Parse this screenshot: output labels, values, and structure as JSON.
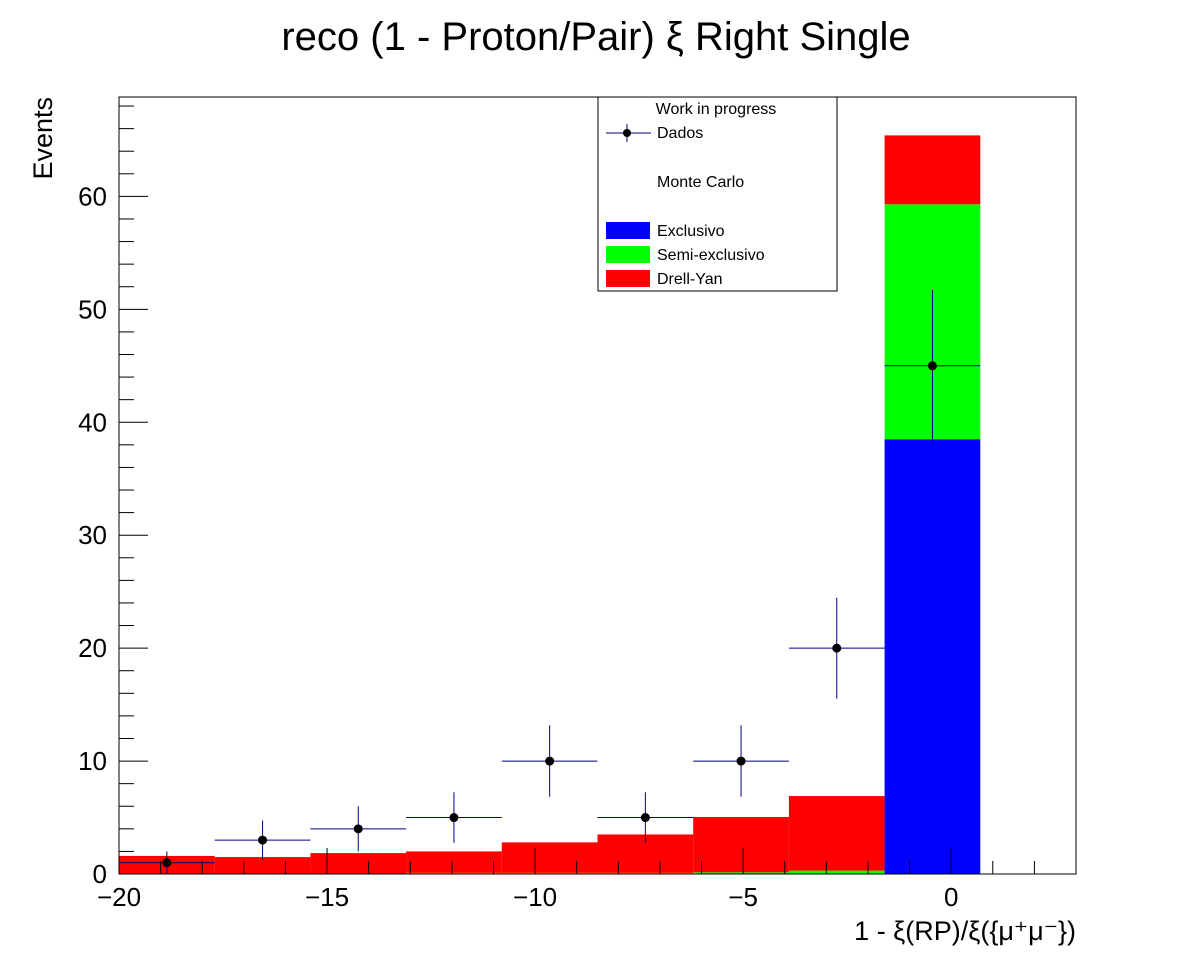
{
  "chart_data": {
    "type": "bar",
    "stacked": true,
    "title": "reco (1 - Proton/Pair)  ξ Right Single",
    "xlabel": "1 - ξ(RP)/ξ({μ⁺μ⁻})",
    "ylabel": "Events",
    "xlim": [
      -20,
      3
    ],
    "ylim": [
      0,
      68.8
    ],
    "grid": false,
    "legend_position": "top-center",
    "x_ticks": [
      -20,
      -15,
      -10,
      -5,
      0
    ],
    "x_tick_labels": [
      "−20",
      "−15",
      "−10",
      "−5",
      "0"
    ],
    "y_ticks": [
      0,
      10,
      20,
      30,
      40,
      50,
      60
    ],
    "y_tick_labels": [
      "0",
      "10",
      "20",
      "30",
      "40",
      "50",
      "60"
    ],
    "bin_edges": [
      -20,
      -17.7,
      -15.4,
      -13.1,
      -10.8,
      -8.5,
      -6.2,
      -3.9,
      -1.6,
      0.7,
      3.0
    ],
    "series": [
      {
        "name": "Exclusivo",
        "color": "#0000ff",
        "values": [
          0,
          0,
          0,
          0,
          0,
          0,
          0,
          0,
          38.5,
          0
        ]
      },
      {
        "name": "Semi-exclusivo",
        "color": "#00ff00",
        "values": [
          0,
          0,
          0,
          0.1,
          0.1,
          0.1,
          0.15,
          0.3,
          20.8,
          0
        ]
      },
      {
        "name": "Drell-Yan",
        "color": "#ff0000",
        "values": [
          1.6,
          1.5,
          1.85,
          1.9,
          2.7,
          3.4,
          4.9,
          6.6,
          6.1,
          0
        ]
      }
    ],
    "data_points": {
      "name": "Dados",
      "color": "#000000",
      "error_color": "#000080",
      "x": [
        -18.85,
        -16.55,
        -14.25,
        -11.95,
        -9.65,
        -7.35,
        -5.05,
        -2.75,
        -0.45
      ],
      "y": [
        1,
        3,
        4,
        5,
        10,
        5,
        10,
        20,
        45
      ],
      "x_err": 1.15,
      "y_err": [
        1.0,
        1.73,
        2.0,
        2.24,
        3.16,
        2.24,
        3.16,
        4.47,
        6.71
      ]
    },
    "legend": {
      "header": "Work in progress",
      "data_label": "Dados",
      "mc_label": "Monte Carlo",
      "entries": [
        "Exclusivo",
        "Semi-exclusivo",
        "Drell-Yan"
      ]
    }
  }
}
